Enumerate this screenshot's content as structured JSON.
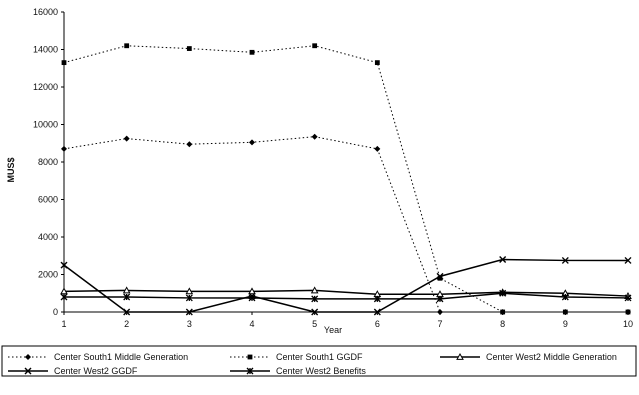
{
  "chart_data": {
    "type": "line",
    "x": [
      1,
      2,
      3,
      4,
      5,
      6,
      7,
      8,
      9,
      10
    ],
    "xlabel": "Year",
    "ylabel": "MUS$",
    "ylim": [
      0,
      16000
    ],
    "yticks": [
      0,
      2000,
      4000,
      6000,
      8000,
      10000,
      12000,
      14000,
      16000
    ],
    "grid": false,
    "legend_position": "bottom",
    "series": [
      {
        "name": "Center South1 Middle Generation",
        "marker": "diamond",
        "line": "dotted",
        "values": [
          8700,
          9250,
          8950,
          9050,
          9350,
          8700,
          0,
          0,
          0,
          0
        ]
      },
      {
        "name": "Center South1 GGDF",
        "marker": "square",
        "line": "dotted",
        "values": [
          13300,
          14200,
          14050,
          13850,
          14200,
          13300,
          1800,
          0,
          0,
          0
        ]
      },
      {
        "name": "Center West2 Middle Generation",
        "marker": "triangle",
        "line": "solid",
        "values": [
          1100,
          1150,
          1100,
          1100,
          1150,
          950,
          950,
          1050,
          1000,
          850
        ]
      },
      {
        "name": "Center West2 GGDF",
        "marker": "x",
        "line": "solid",
        "values": [
          2500,
          0,
          0,
          850,
          0,
          0,
          1900,
          2800,
          2750,
          2750
        ]
      },
      {
        "name": "Center West2 Benefits",
        "marker": "star",
        "line": "solid",
        "values": [
          800,
          800,
          750,
          750,
          700,
          700,
          700,
          1000,
          800,
          750
        ]
      }
    ]
  }
}
